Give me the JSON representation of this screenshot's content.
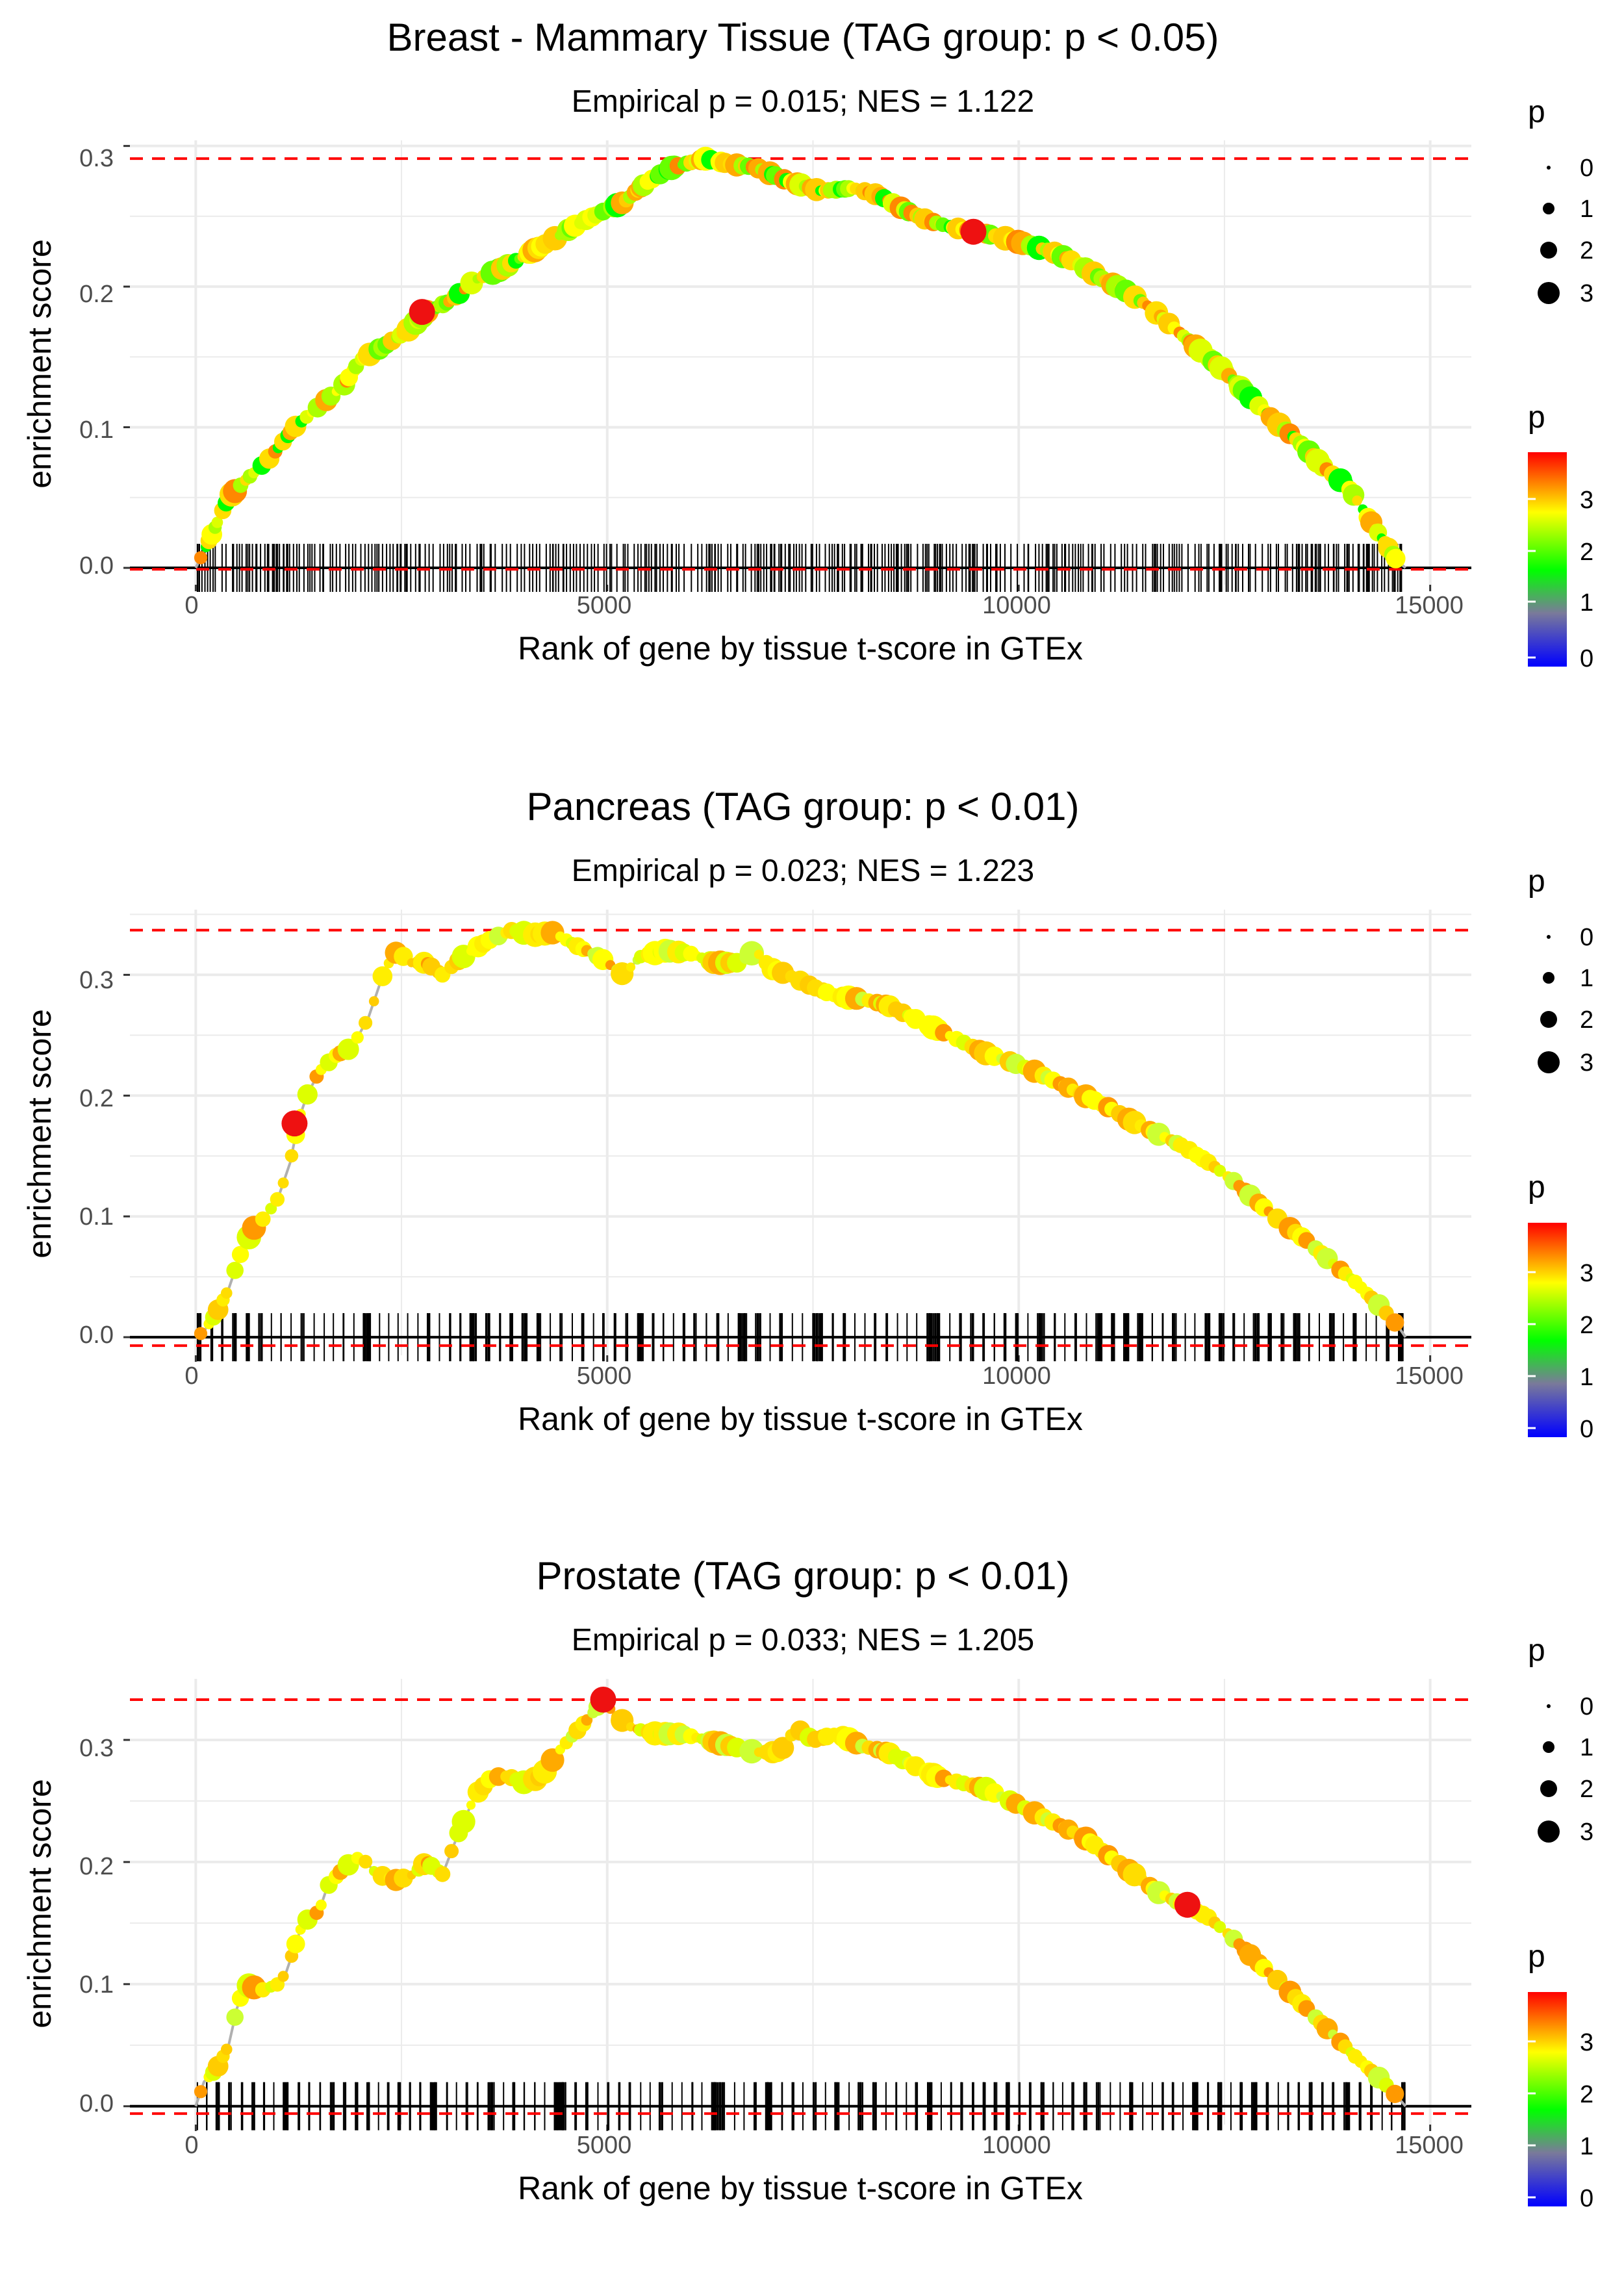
{
  "colors": {
    "background": "#ffffff",
    "grid": "#ebebeb",
    "baseline": "#000000",
    "max_line": "#ff0000",
    "curve": "#b0b0b0",
    "tick_text": "#4d4d4d",
    "colorbar": [
      "#0000ff",
      "#00ff00",
      "#ffff00",
      "#ff0000"
    ]
  },
  "chart_data": [
    {
      "type": "line",
      "title": "Breast - Mammary Tissue (TAG group: p < 0.05)",
      "subtitle": "Empirical p = 0.015; NES = 1.122",
      "xlabel": "Rank of gene by tissue t-score in GTEx",
      "ylabel": "enrichment score",
      "xlim": [
        -800,
        15500
      ],
      "ylim": [
        -0.012,
        0.304
      ],
      "xticks": [
        0,
        5000,
        10000,
        15000
      ],
      "xtick_labels": [
        "0",
        "5000",
        "10000",
        "15000"
      ],
      "yticks": [
        0,
        0.1,
        0.2,
        0.3
      ],
      "ytick_labels": [
        "0.0",
        "0.1",
        "0.2",
        "0.3"
      ],
      "max_es": 0.291,
      "min_es": -0.001,
      "gene_range": [
        0,
        14700
      ],
      "curve": [
        [
          0,
          0
        ],
        [
          150,
          0.018
        ],
        [
          400,
          0.05
        ],
        [
          600,
          0.062
        ],
        [
          900,
          0.078
        ],
        [
          1200,
          0.1
        ],
        [
          1500,
          0.115
        ],
        [
          1800,
          0.13
        ],
        [
          2000,
          0.148
        ],
        [
          2300,
          0.158
        ],
        [
          2600,
          0.17
        ],
        [
          2800,
          0.182
        ],
        [
          3100,
          0.19
        ],
        [
          3400,
          0.205
        ],
        [
          3700,
          0.212
        ],
        [
          4000,
          0.222
        ],
        [
          4300,
          0.232
        ],
        [
          4600,
          0.243
        ],
        [
          4900,
          0.252
        ],
        [
          5200,
          0.26
        ],
        [
          5500,
          0.275
        ],
        [
          5800,
          0.285
        ],
        [
          6200,
          0.291
        ],
        [
          6500,
          0.287
        ],
        [
          6800,
          0.285
        ],
        [
          7200,
          0.275
        ],
        [
          7600,
          0.268
        ],
        [
          8000,
          0.27
        ],
        [
          8300,
          0.265
        ],
        [
          8600,
          0.255
        ],
        [
          8900,
          0.247
        ],
        [
          9200,
          0.242
        ],
        [
          9500,
          0.239
        ],
        [
          9800,
          0.235
        ],
        [
          10100,
          0.23
        ],
        [
          10400,
          0.225
        ],
        [
          10700,
          0.217
        ],
        [
          11000,
          0.206
        ],
        [
          11300,
          0.197
        ],
        [
          11600,
          0.185
        ],
        [
          11900,
          0.17
        ],
        [
          12200,
          0.155
        ],
        [
          12500,
          0.14
        ],
        [
          12800,
          0.122
        ],
        [
          13100,
          0.105
        ],
        [
          13400,
          0.09
        ],
        [
          13700,
          0.072
        ],
        [
          14000,
          0.058
        ],
        [
          14200,
          0.04
        ],
        [
          14400,
          0.022
        ],
        [
          14600,
          0.005
        ],
        [
          14700,
          0
        ]
      ],
      "red_points": [
        [
          2750,
          0.182
        ],
        [
          9450,
          0.239
        ]
      ],
      "gene_density": 1.6,
      "color_scale": "breast",
      "size_legend": {
        "title": "p",
        "labels": [
          "0",
          "1",
          "2",
          "3"
        ]
      },
      "color_legend": {
        "title": "p",
        "labels": [
          "0",
          "1",
          "2",
          "3"
        ]
      }
    },
    {
      "type": "line",
      "title": "Pancreas (TAG group: p < 0.01)",
      "subtitle": "Empirical p = 0.023; NES = 1.223",
      "xlabel": "Rank of gene by tissue t-score in GTEx",
      "ylabel": "enrichment score",
      "xlim": [
        -800,
        15500
      ],
      "ylim": [
        -0.015,
        0.354
      ],
      "xticks": [
        0,
        5000,
        10000,
        15000
      ],
      "xtick_labels": [
        "0",
        "5000",
        "10000",
        "15000"
      ],
      "yticks": [
        0,
        0.1,
        0.2,
        0.3
      ],
      "ytick_labels": [
        "0.0",
        "0.1",
        "0.2",
        "0.3"
      ],
      "max_es": 0.337,
      "min_es": -0.007,
      "gene_range": [
        0,
        14700
      ],
      "curve": [
        [
          0,
          0
        ],
        [
          100,
          0.005
        ],
        [
          250,
          0.02
        ],
        [
          400,
          0.04
        ],
        [
          550,
          0.07
        ],
        [
          700,
          0.09
        ],
        [
          850,
          0.1
        ],
        [
          1000,
          0.115
        ],
        [
          1150,
          0.145
        ],
        [
          1250,
          0.18
        ],
        [
          1350,
          0.2
        ],
        [
          1500,
          0.22
        ],
        [
          1700,
          0.233
        ],
        [
          1900,
          0.24
        ],
        [
          2100,
          0.265
        ],
        [
          2300,
          0.305
        ],
        [
          2450,
          0.32
        ],
        [
          2600,
          0.31
        ],
        [
          2800,
          0.31
        ],
        [
          3000,
          0.3
        ],
        [
          3300,
          0.318
        ],
        [
          3600,
          0.33
        ],
        [
          3850,
          0.337
        ],
        [
          4100,
          0.333
        ],
        [
          4350,
          0.335
        ],
        [
          4600,
          0.325
        ],
        [
          4900,
          0.315
        ],
        [
          5200,
          0.3
        ],
        [
          5400,
          0.315
        ],
        [
          5700,
          0.32
        ],
        [
          6000,
          0.318
        ],
        [
          6300,
          0.31
        ],
        [
          6600,
          0.31
        ],
        [
          6800,
          0.32
        ],
        [
          7000,
          0.305
        ],
        [
          7200,
          0.3
        ],
        [
          7500,
          0.29
        ],
        [
          7800,
          0.282
        ],
        [
          8100,
          0.28
        ],
        [
          8400,
          0.275
        ],
        [
          8700,
          0.265
        ],
        [
          9000,
          0.255
        ],
        [
          9300,
          0.245
        ],
        [
          9600,
          0.235
        ],
        [
          9900,
          0.228
        ],
        [
          10200,
          0.22
        ],
        [
          10500,
          0.21
        ],
        [
          10800,
          0.2
        ],
        [
          11100,
          0.19
        ],
        [
          11400,
          0.178
        ],
        [
          11700,
          0.168
        ],
        [
          12000,
          0.158
        ],
        [
          12300,
          0.145
        ],
        [
          12600,
          0.13
        ],
        [
          12900,
          0.112
        ],
        [
          13200,
          0.095
        ],
        [
          13500,
          0.08
        ],
        [
          13800,
          0.062
        ],
        [
          14100,
          0.045
        ],
        [
          14400,
          0.025
        ],
        [
          14600,
          0.01
        ],
        [
          14700,
          0
        ]
      ],
      "red_points": [
        [
          1200,
          0.177
        ]
      ],
      "gene_density": 0.55,
      "color_scale": "panc",
      "size_legend": {
        "title": "p",
        "labels": [
          "0",
          "1",
          "2",
          "3"
        ]
      },
      "color_legend": {
        "title": "p",
        "labels": [
          "0",
          "1",
          "2",
          "3"
        ]
      }
    },
    {
      "type": "line",
      "title": "Prostate (TAG group: p < 0.01)",
      "subtitle": "Empirical p = 0.033; NES = 1.205",
      "xlabel": "Rank of gene by tissue t-score in GTEx",
      "ylabel": "enrichment score",
      "xlim": [
        -800,
        15500
      ],
      "ylim": [
        -0.015,
        0.35
      ],
      "xticks": [
        0,
        5000,
        10000,
        15000
      ],
      "xtick_labels": [
        "0",
        "5000",
        "10000",
        "15000"
      ],
      "yticks": [
        0,
        0.1,
        0.2,
        0.3
      ],
      "ytick_labels": [
        "0.0",
        "0.1",
        "0.2",
        "0.3"
      ],
      "max_es": 0.333,
      "min_es": -0.006,
      "gene_range": [
        0,
        14700
      ],
      "curve": [
        [
          0,
          0
        ],
        [
          100,
          0.02
        ],
        [
          250,
          0.03
        ],
        [
          400,
          0.05
        ],
        [
          500,
          0.08
        ],
        [
          600,
          0.1
        ],
        [
          800,
          0.095
        ],
        [
          1000,
          0.1
        ],
        [
          1100,
          0.11
        ],
        [
          1200,
          0.13
        ],
        [
          1300,
          0.15
        ],
        [
          1500,
          0.16
        ],
        [
          1600,
          0.18
        ],
        [
          1800,
          0.195
        ],
        [
          2000,
          0.205
        ],
        [
          2200,
          0.19
        ],
        [
          2450,
          0.185
        ],
        [
          2650,
          0.19
        ],
        [
          2800,
          0.2
        ],
        [
          3000,
          0.19
        ],
        [
          3200,
          0.225
        ],
        [
          3400,
          0.255
        ],
        [
          3600,
          0.27
        ],
        [
          3800,
          0.27
        ],
        [
          4000,
          0.265
        ],
        [
          4200,
          0.27
        ],
        [
          4400,
          0.29
        ],
        [
          4600,
          0.305
        ],
        [
          4800,
          0.32
        ],
        [
          4950,
          0.333
        ],
        [
          5100,
          0.32
        ],
        [
          5300,
          0.31
        ],
        [
          5600,
          0.305
        ],
        [
          5900,
          0.305
        ],
        [
          6200,
          0.3
        ],
        [
          6500,
          0.295
        ],
        [
          6800,
          0.29
        ],
        [
          7100,
          0.29
        ],
        [
          7300,
          0.31
        ],
        [
          7500,
          0.3
        ],
        [
          7800,
          0.305
        ],
        [
          8100,
          0.295
        ],
        [
          8400,
          0.29
        ],
        [
          8700,
          0.28
        ],
        [
          9000,
          0.27
        ],
        [
          9300,
          0.265
        ],
        [
          9600,
          0.26
        ],
        [
          9900,
          0.25
        ],
        [
          10200,
          0.24
        ],
        [
          10500,
          0.23
        ],
        [
          10800,
          0.22
        ],
        [
          11100,
          0.205
        ],
        [
          11400,
          0.19
        ],
        [
          11700,
          0.175
        ],
        [
          12000,
          0.165
        ],
        [
          12300,
          0.155
        ],
        [
          12600,
          0.138
        ],
        [
          12900,
          0.118
        ],
        [
          13200,
          0.1
        ],
        [
          13500,
          0.08
        ],
        [
          13800,
          0.06
        ],
        [
          14100,
          0.04
        ],
        [
          14400,
          0.022
        ],
        [
          14600,
          0.008
        ],
        [
          14700,
          0
        ]
      ],
      "red_points": [
        [
          4950,
          0.333
        ],
        [
          12050,
          0.165
        ]
      ],
      "gene_density": 0.55,
      "color_scale": "prost",
      "size_legend": {
        "title": "p",
        "labels": [
          "0",
          "1",
          "2",
          "3"
        ]
      },
      "color_legend": {
        "title": "p",
        "labels": [
          "0",
          "1",
          "2",
          "3"
        ]
      }
    }
  ]
}
